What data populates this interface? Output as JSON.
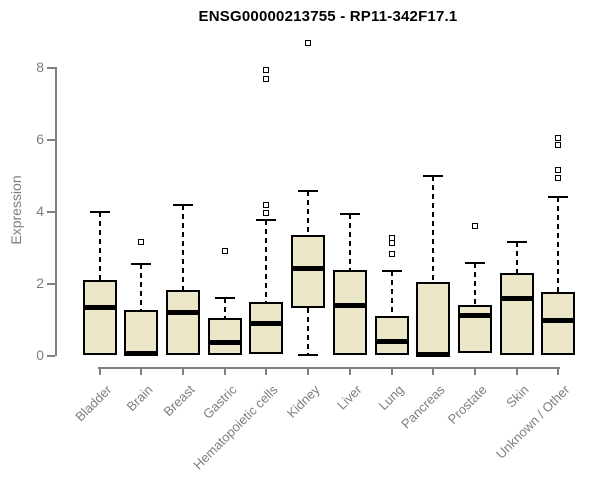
{
  "chart_data": {
    "type": "boxplot",
    "title": "ENSG00000213755 - RP11-342F17.1",
    "ylabel": "Expression",
    "xlabel": "",
    "ylim": [
      0,
      8.8
    ],
    "yticks": [
      0,
      2,
      4,
      6,
      8
    ],
    "grid": false,
    "legend": null,
    "categories": [
      "Bladder",
      "Brain",
      "Breast",
      "Gastric",
      "Hematopoietic cells",
      "Kidney",
      "Liver",
      "Lung",
      "Pancreas",
      "Prostate",
      "Skin",
      "Unknown / Other"
    ],
    "boxes": [
      {
        "category": "Bladder",
        "whisker_low": 0,
        "q1": 0.02,
        "median": 1.33,
        "q3": 2.11,
        "whisker_high": 3.98,
        "outliers": []
      },
      {
        "category": "Brain",
        "whisker_low": 0,
        "q1": 0.02,
        "median": 0.06,
        "q3": 1.26,
        "whisker_high": 2.55,
        "outliers": [
          3.15
        ]
      },
      {
        "category": "Breast",
        "whisker_low": 0,
        "q1": 0.02,
        "median": 1.21,
        "q3": 1.81,
        "whisker_high": 4.2,
        "outliers": []
      },
      {
        "category": "Gastric",
        "whisker_low": 0,
        "q1": 0.02,
        "median": 0.37,
        "q3": 1.04,
        "whisker_high": 1.6,
        "outliers": [
          2.92
        ]
      },
      {
        "category": "Hematopoietic cells",
        "whisker_low": 0,
        "q1": 0.03,
        "median": 0.88,
        "q3": 1.5,
        "whisker_high": 3.77,
        "outliers": [
          3.97,
          4.2,
          7.7,
          7.95
        ]
      },
      {
        "category": "Kidney",
        "whisker_low": 0.02,
        "q1": 1.33,
        "median": 2.43,
        "q3": 3.36,
        "whisker_high": 4.58,
        "outliers": [
          8.7
        ]
      },
      {
        "category": "Liver",
        "whisker_low": 0,
        "q1": 0.02,
        "median": 1.39,
        "q3": 2.39,
        "whisker_high": 3.94,
        "outliers": []
      },
      {
        "category": "Lung",
        "whisker_low": 0,
        "q1": 0.02,
        "median": 0.38,
        "q3": 1.1,
        "whisker_high": 2.35,
        "outliers": [
          2.83,
          3.12,
          3.28
        ]
      },
      {
        "category": "Pancreas",
        "whisker_low": 0,
        "q1": 0.02,
        "median": 0.04,
        "q3": 2.05,
        "whisker_high": 5.0,
        "outliers": []
      },
      {
        "category": "Prostate",
        "whisker_low": 0,
        "q1": 0.06,
        "median": 1.12,
        "q3": 1.41,
        "whisker_high": 2.57,
        "outliers": [
          3.6
        ]
      },
      {
        "category": "Skin",
        "whisker_low": 0,
        "q1": 0.02,
        "median": 1.58,
        "q3": 2.29,
        "whisker_high": 3.16,
        "outliers": []
      },
      {
        "category": "Unknown / Other",
        "whisker_low": 0,
        "q1": 0.02,
        "median": 0.98,
        "q3": 1.78,
        "whisker_high": 4.4,
        "outliers": [
          4.95,
          5.15,
          5.85,
          6.05
        ]
      }
    ],
    "colors": {
      "box_fill": "#EDE7C9",
      "box_border": "#000000",
      "median": "#000000",
      "whisker": "#000000",
      "outlier": "#000000",
      "axis": "#7F7F7F",
      "tick_label": "#7F7F7F",
      "category_label": "#7F7F7F",
      "title": "#000000",
      "background": "#FFFFFF"
    }
  }
}
